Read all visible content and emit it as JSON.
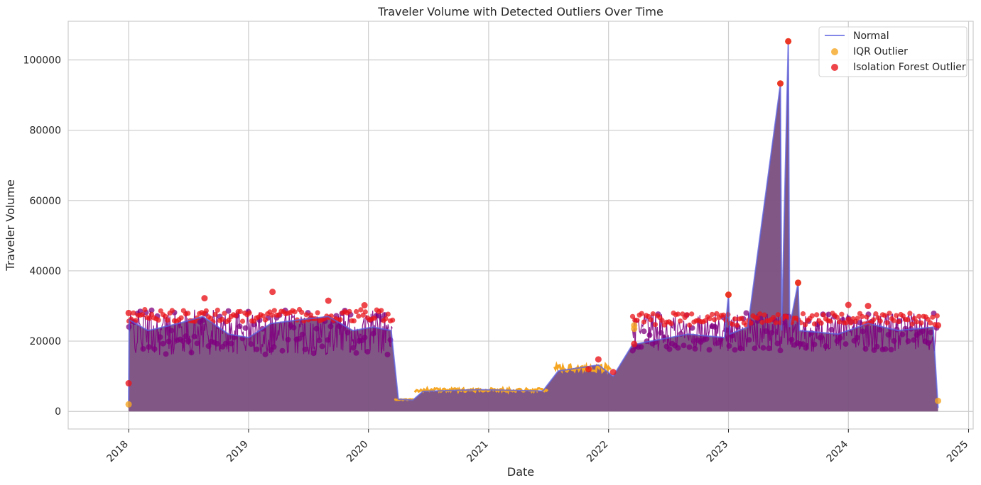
{
  "chart_data": {
    "type": "line",
    "title": "Traveler Volume with Detected Outliers Over Time",
    "xlabel": "Date",
    "ylabel": "Traveler Volume",
    "x_range": [
      "2017-07-01",
      "2025-01-15"
    ],
    "ylim": [
      -5000,
      111000
    ],
    "x_ticks": [
      "2018",
      "2019",
      "2020",
      "2021",
      "2022",
      "2023",
      "2024",
      "2025"
    ],
    "y_ticks": [
      "0",
      "20000",
      "40000",
      "60000",
      "80000",
      "100000"
    ],
    "grid": true,
    "legend_placement": "top-right",
    "colors": {
      "normal": "#5a5fe0",
      "iqr": "#f5a623",
      "isolation": "#e8161b",
      "overlap": "#7f007f",
      "fill": "#7a4f7e"
    },
    "series": [
      {
        "name": "Normal",
        "kind": "line",
        "points": [
          [
            "2018-01-01",
            1000
          ],
          [
            "2018-01-03",
            26000
          ],
          [
            "2018-03-01",
            23000
          ],
          [
            "2018-06-01",
            25000
          ],
          [
            "2018-08-15",
            27000
          ],
          [
            "2018-11-01",
            22000
          ],
          [
            "2019-01-01",
            21000
          ],
          [
            "2019-03-10",
            25000
          ],
          [
            "2019-06-01",
            26000
          ],
          [
            "2019-09-01",
            27000
          ],
          [
            "2019-11-15",
            23000
          ],
          [
            "2020-01-15",
            24000
          ],
          [
            "2020-03-10",
            23000
          ],
          [
            "2020-04-01",
            3500
          ],
          [
            "2020-05-15",
            3200
          ],
          [
            "2020-06-15",
            5700
          ],
          [
            "2020-12-01",
            6200
          ],
          [
            "2021-06-15",
            5800
          ],
          [
            "2021-08-01",
            11500
          ],
          [
            "2021-12-01",
            13200
          ],
          [
            "2022-01-15",
            10000
          ],
          [
            "2022-03-15",
            19000
          ],
          [
            "2022-09-01",
            22000
          ],
          [
            "2022-12-20",
            21000
          ],
          [
            "2023-01-01",
            33000
          ],
          [
            "2023-01-05",
            22000
          ],
          [
            "2023-03-01",
            24000
          ],
          [
            "2023-06-08",
            93000
          ],
          [
            "2023-06-12",
            23000
          ],
          [
            "2023-07-02",
            105000
          ],
          [
            "2023-07-06",
            24000
          ],
          [
            "2023-08-01",
            36500
          ],
          [
            "2023-08-05",
            23000
          ],
          [
            "2023-12-01",
            22000
          ],
          [
            "2024-03-01",
            25000
          ],
          [
            "2024-06-01",
            23000
          ],
          [
            "2024-09-15",
            24000
          ],
          [
            "2024-09-30",
            1000
          ]
        ]
      },
      {
        "name": "IQR Outlier",
        "kind": "scatter",
        "points": [
          [
            "2022-03-20",
            24500
          ],
          [
            "2022-03-20",
            23500
          ],
          [
            "2023-01-01",
            33200
          ],
          [
            "2023-06-08",
            93300
          ],
          [
            "2023-07-02",
            105300
          ],
          [
            "2023-08-01",
            36600
          ],
          [
            "2024-09-30",
            3000
          ],
          [
            "2018-01-01",
            2000
          ]
        ]
      },
      {
        "name": "Isolation Forest Outlier",
        "kind": "scatter",
        "points": [
          [
            "2018-01-01",
            28000
          ],
          [
            "2018-01-01",
            8000
          ],
          [
            "2019-03-15",
            34000
          ],
          [
            "2019-09-01",
            31500
          ],
          [
            "2018-08-20",
            32200
          ],
          [
            "2019-12-20",
            30200
          ],
          [
            "2021-12-01",
            14800
          ],
          [
            "2021-11-01",
            12000
          ],
          [
            "2022-01-15",
            11200
          ],
          [
            "2022-03-20",
            19200
          ],
          [
            "2023-01-01",
            33200
          ],
          [
            "2023-06-08",
            93300
          ],
          [
            "2023-07-02",
            105300
          ],
          [
            "2023-08-01",
            36600
          ],
          [
            "2024-01-01",
            30300
          ],
          [
            "2024-03-01",
            30000
          ],
          [
            "2024-09-30",
            24500
          ]
        ]
      }
    ]
  }
}
